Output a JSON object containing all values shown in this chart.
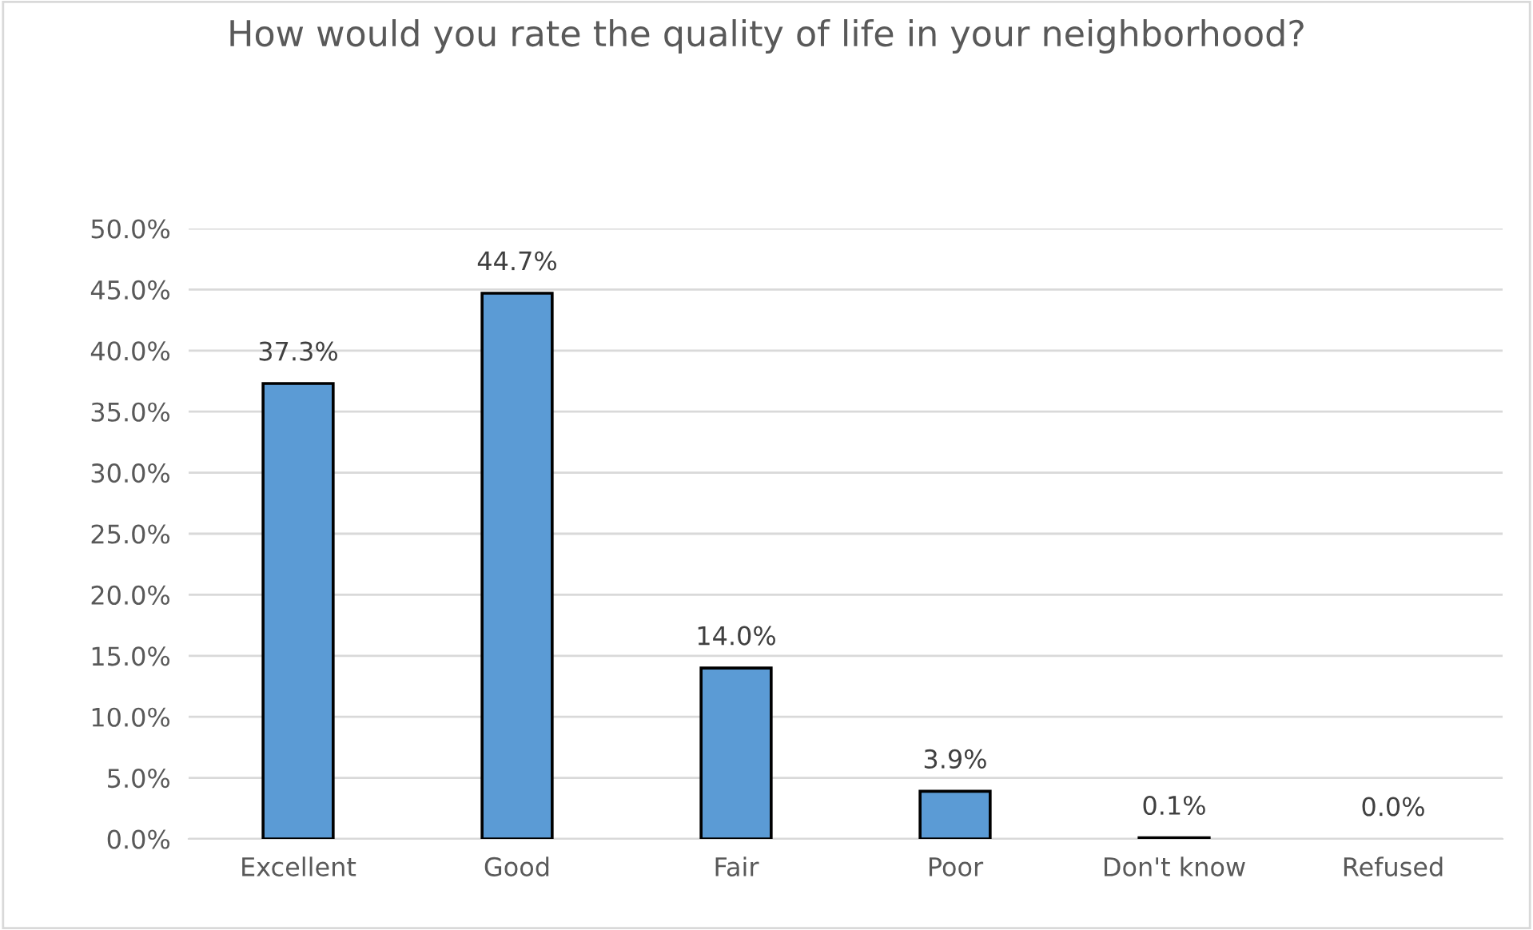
{
  "chart_data": {
    "type": "bar",
    "title": "How would you rate the quality of life in your neighborhood?",
    "categories": [
      "Excellent",
      "Good",
      "Fair",
      "Poor",
      "Don't know",
      "Refused"
    ],
    "values": [
      37.3,
      44.7,
      14.0,
      3.9,
      0.1,
      0.0
    ],
    "value_labels": [
      "37.3%",
      "44.7%",
      "14.0%",
      "3.9%",
      "0.1%",
      "0.0%"
    ],
    "color": "#5b9bd5",
    "ylim": [
      0,
      50
    ],
    "yticks": [
      {
        "value": 0,
        "label": "0.0%"
      },
      {
        "value": 5,
        "label": "5.0%"
      },
      {
        "value": 10,
        "label": "10.0%"
      },
      {
        "value": 15,
        "label": "15.0%"
      },
      {
        "value": 20,
        "label": "20.0%"
      },
      {
        "value": 25,
        "label": "25.0%"
      },
      {
        "value": 30,
        "label": "30.0%"
      },
      {
        "value": 35,
        "label": "35.0%"
      },
      {
        "value": 40,
        "label": "40.0%"
      },
      {
        "value": 45,
        "label": "45.0%"
      },
      {
        "value": 50,
        "label": "50.0%"
      }
    ],
    "grid": "y"
  }
}
